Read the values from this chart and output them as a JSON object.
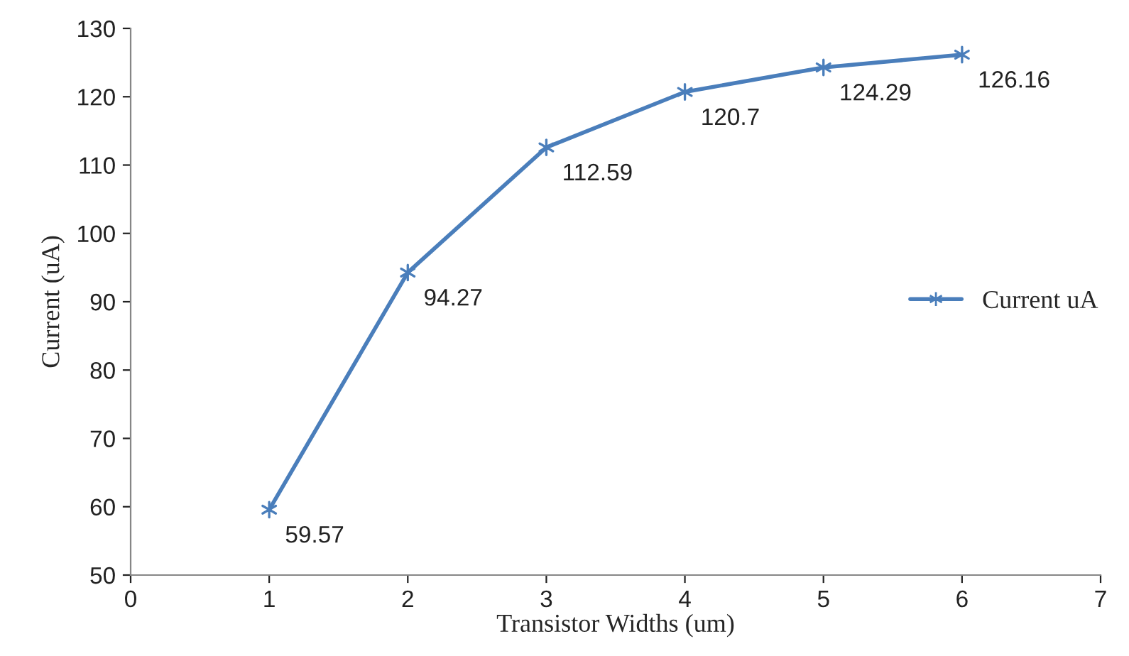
{
  "chart_data": {
    "type": "line",
    "xlabel": "Transistor Widths (um)",
    "ylabel": "Current (uA)",
    "x": [
      1,
      2,
      3,
      4,
      5,
      6
    ],
    "series": [
      {
        "name": "Current uA",
        "color": "#4a7ebb",
        "values": [
          59.57,
          94.27,
          112.59,
          120.7,
          124.29,
          126.16
        ]
      }
    ],
    "data_labels": true,
    "marker": "cross",
    "line_style": "solid",
    "grid": false,
    "legend": "right",
    "xlim": [
      0,
      7
    ],
    "xticks": [
      0,
      1,
      2,
      3,
      4,
      5,
      6,
      7
    ],
    "ylim": [
      50,
      130
    ],
    "yticks": [
      50,
      60,
      70,
      80,
      90,
      100,
      110,
      120,
      130
    ]
  }
}
